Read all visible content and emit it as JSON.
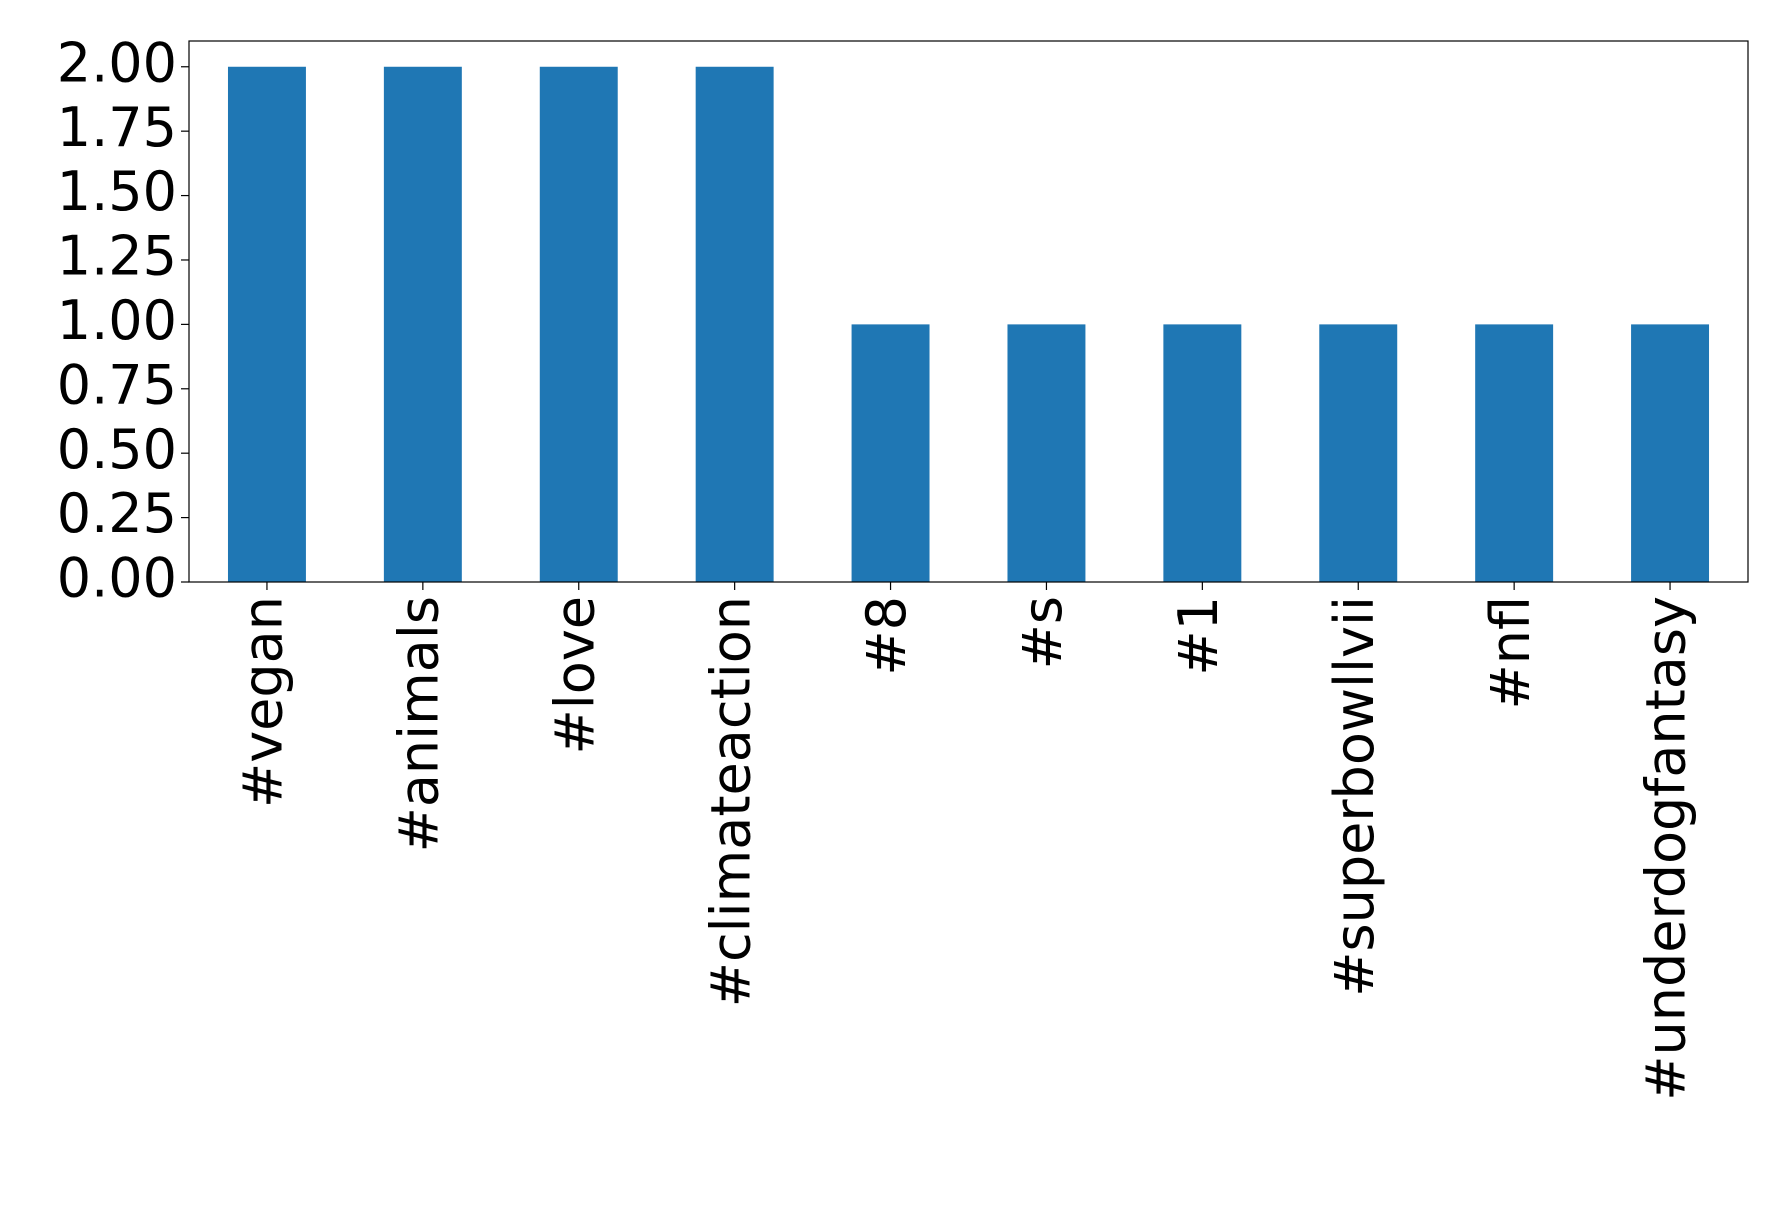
{
  "chart_data": {
    "type": "bar",
    "categories": [
      "#vegan",
      "#animals",
      "#love",
      "#climateaction",
      "#8",
      "#s",
      "#1",
      "#superbowllvii",
      "#nfl",
      "#underdogfantasy"
    ],
    "values": [
      2,
      2,
      2,
      2,
      1,
      1,
      1,
      1,
      1,
      1
    ],
    "color": "#1f77b4",
    "ylim": [
      0,
      2.1
    ],
    "yticks": [
      {
        "value": 0,
        "label": "0.00"
      },
      {
        "value": 0.25,
        "label": "0.25"
      },
      {
        "value": 0.5,
        "label": "0.50"
      },
      {
        "value": 0.75,
        "label": "0.75"
      },
      {
        "value": 1,
        "label": "1.00"
      },
      {
        "value": 1.25,
        "label": "1.25"
      },
      {
        "value": 1.5,
        "label": "1.50"
      },
      {
        "value": 1.75,
        "label": "1.75"
      },
      {
        "value": 2,
        "label": "2.00"
      }
    ],
    "grid": false
  }
}
